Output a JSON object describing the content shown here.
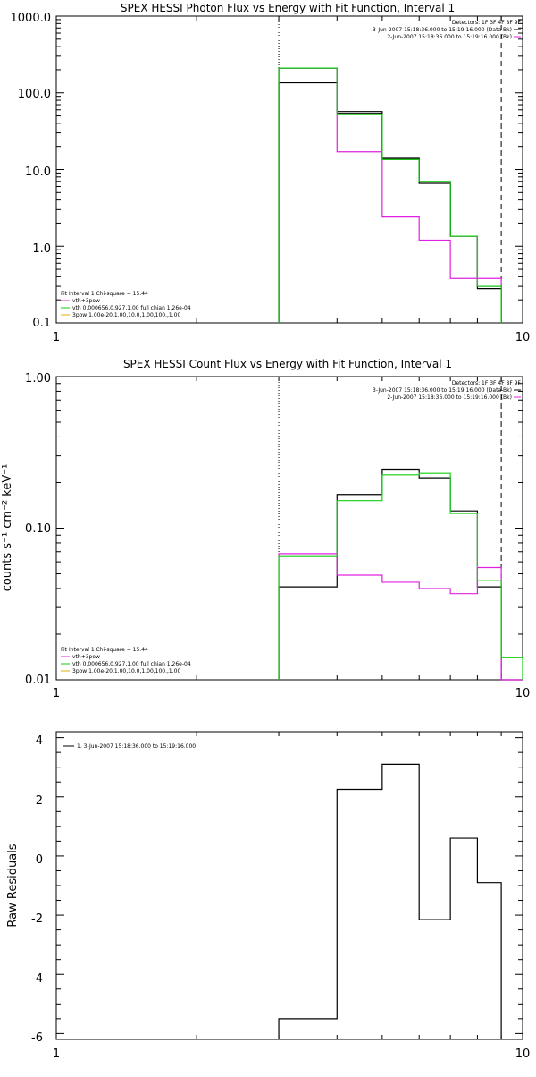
{
  "colors": {
    "background": "#ffffff",
    "axes": "#000000",
    "black_series": "#000000",
    "magenta_series": "#e020e0",
    "green_series": "#10d010",
    "orange_series": "#e0b000"
  },
  "chart_data": [
    {
      "type": "line",
      "title": "SPEX HESSI Photon Flux vs Energy with Fit Function, Interval 1",
      "ylabel": "",
      "xscale": "log",
      "yscale": "log",
      "xlim": [
        1,
        10
      ],
      "ylim": [
        0.1,
        1000
      ],
      "xticks": [
        "1",
        "10"
      ],
      "yticks": [
        "0.1",
        "1.0",
        "10.0",
        "100.0",
        "1000.0"
      ],
      "vlines": [
        {
          "x": 3.0,
          "style": "dotted"
        },
        {
          "x": 9.0,
          "style": "dashed"
        }
      ],
      "legend_topright": [
        "Detectors: 1F 3F 4F 8F 9F",
        "3-Jun-2007 15:18:36.000 to 15:19:16.000 (Data-Bk)",
        "2-Jun-2007 15:18:36.000 to 15:19:16.000 (Bk)"
      ],
      "legend_topright_colors": [
        "",
        "#000000",
        "#e020e0"
      ],
      "legend_bottomleft": [
        "Fit Interval 1    Chi-square = 15.44",
        "vth+3pow",
        "vth 0.000656,0.927,1.00  full chian 1.26e-04",
        "3pow 1.00e-20,1.00,10.0,1.00,100.,1.00"
      ],
      "legend_bottomleft_colors": [
        "",
        "#e020e0",
        "#10d010",
        "#e0b000"
      ],
      "edges": [
        3.0,
        4.0,
        5.0,
        6.0,
        7.0,
        8.0,
        9.0
      ],
      "series": [
        {
          "values": [
            210,
            57,
            14,
            6.6,
            1.35,
            0.28
          ],
          "color": "#000000"
        },
        {
          "values": [
            135,
            54,
            13.5,
            6.9,
            1.35,
            0.3
          ],
          "color": "#000000"
        },
        {
          "values": [
            210,
            17,
            2.4,
            1.2,
            0.38,
            0.38
          ],
          "color": "#e020e0"
        },
        {
          "values": [
            210,
            52,
            13.5,
            7.0,
            1.35,
            0.3
          ],
          "color": "#10d010"
        }
      ]
    },
    {
      "type": "line",
      "title": "SPEX HESSI Count Flux vs Energy with Fit Function, Interval 1",
      "ylabel": "counts s⁻¹ cm⁻² keV⁻¹",
      "xscale": "log",
      "yscale": "log",
      "xlim": [
        1,
        10
      ],
      "ylim": [
        0.01,
        1.0
      ],
      "xticks": [
        "1",
        "10"
      ],
      "yticks": [
        "0.01",
        "0.10",
        "1.00"
      ],
      "vlines": [
        {
          "x": 3.0,
          "style": "dotted"
        },
        {
          "x": 9.0,
          "style": "dashed"
        }
      ],
      "legend_topright": [
        "Detectors: 1F 3F 4F 8F 9F",
        "3-Jun-2007 15:18:36.000 to 15:19:16.000 (Data-Bk)",
        "2-Jun-2007 15:18:36.000 to 15:19:16.000 (Bk)"
      ],
      "legend_topright_colors": [
        "",
        "#000000",
        "#e020e0"
      ],
      "legend_bottomleft": [
        "Fit Interval 1    Chi-square = 15.44",
        "vth+3pow",
        "vth 0.000656,0.927,1.00  full chian 1.26e-04",
        "3pow 1.00e-20,1.00,10.0,1.00,100.,1.00"
      ],
      "legend_bottomleft_colors": [
        "",
        "#e020e0",
        "#10d010",
        "#e0b000"
      ],
      "edges": [
        3.0,
        4.0,
        5.0,
        6.0,
        7.0,
        8.0,
        9.0,
        10.0
      ],
      "series": [
        {
          "values": [
            0.041,
            0.167,
            0.245,
            0.215,
            0.13,
            0.041,
            0.01
          ],
          "color": "#000000"
        },
        {
          "values": [
            0.068,
            0.049,
            0.044,
            0.04,
            0.037,
            0.055,
            0.01
          ],
          "color": "#e020e0"
        },
        {
          "values": [
            0.065,
            0.152,
            0.225,
            0.23,
            0.125,
            0.045,
            0.014
          ],
          "color": "#10d010"
        }
      ]
    },
    {
      "type": "line",
      "title": "",
      "ylabel": "Raw Residuals",
      "xscale": "log",
      "yscale": "linear",
      "xlim": [
        1,
        10
      ],
      "ylim": [
        -6.2,
        4.2
      ],
      "xticks": [
        "1",
        "10"
      ],
      "yticks": [
        "-6",
        "-4",
        "-2",
        "0",
        "2",
        "4"
      ],
      "legend_topleft": [
        "1.  3-Jun-2007 15:18:36.000 to 15:19:16.000"
      ],
      "edges": [
        3.0,
        4.0,
        5.0,
        6.0,
        7.0,
        8.0,
        9.0
      ],
      "series": [
        {
          "values": [
            -5.5,
            2.25,
            3.1,
            -2.15,
            0.6,
            -0.9
          ],
          "color": "#000000"
        }
      ]
    }
  ]
}
